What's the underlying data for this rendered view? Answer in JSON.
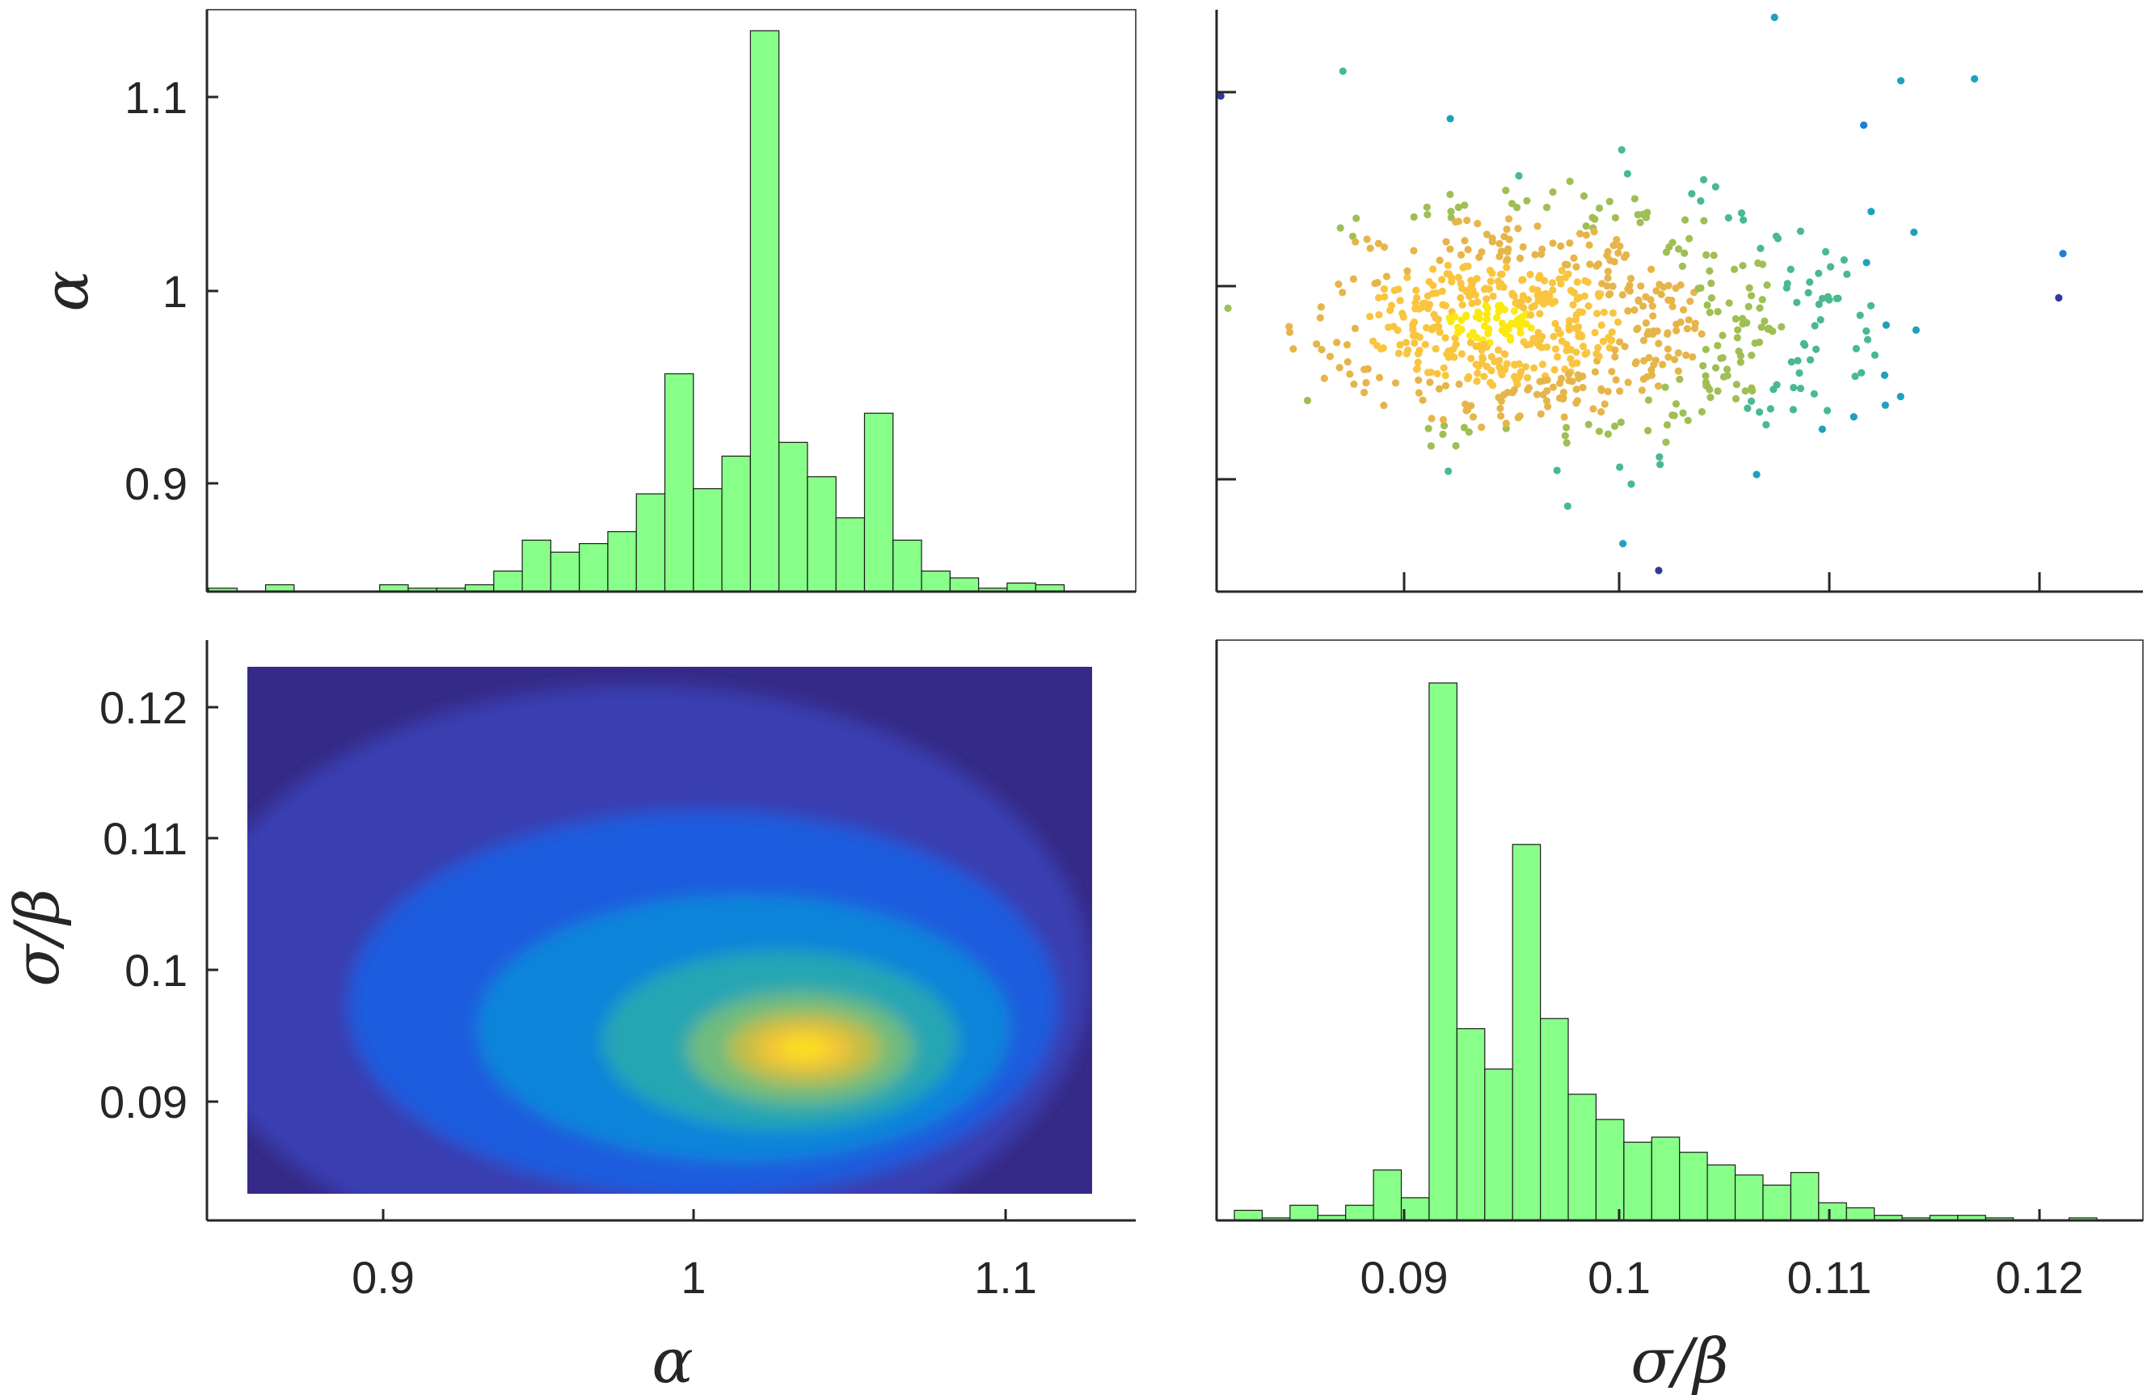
{
  "chart_data": [
    {
      "panel": "alpha-alpha",
      "type": "bar",
      "ylabel": "α",
      "y_ticks": [
        "0.9",
        "1",
        "1.1"
      ],
      "x_bin_edges": [
        0.85,
        1.13
      ],
      "values": [
        0.2,
        0.0,
        0.4,
        0.0,
        0.0,
        0.0,
        0.4,
        0.2,
        0.2,
        0.4,
        1.2,
        3.0,
        2.3,
        2.8,
        3.5,
        5.7,
        12.7,
        6.0,
        7.9,
        32.7,
        8.7,
        6.7,
        4.3,
        10.4,
        3.0,
        1.2,
        0.8,
        0.2,
        0.5,
        0.4,
        0.0,
        0.0
      ],
      "bar_color": "#88ff88"
    },
    {
      "panel": "sigma_beta-alpha",
      "type": "scatter",
      "x_range": [
        0.0825,
        0.1265
      ],
      "y_range": [
        0.847,
        1.15
      ],
      "n_points": 800,
      "center": [
        0.0955,
        0.987
      ],
      "colormap": [
        "#fbe90f",
        "#f9c53f",
        "#e6b54a",
        "#9fbf54",
        "#4ab98f",
        "#1fa0bf",
        "#1f7fd3",
        "#2e3a9e"
      ]
    },
    {
      "panel": "alpha-sigma_beta",
      "type": "heatmap",
      "xlabel": "α",
      "ylabel": "σ/β",
      "x_ticks": [
        "0.9",
        "1",
        "1.1"
      ],
      "y_ticks": [
        "0.09",
        "0.1",
        "0.11",
        "0.12"
      ],
      "x_range": [
        0.862,
        1.134
      ],
      "y_range": [
        0.0833,
        0.1232
      ],
      "peak": [
        1.04,
        0.0943
      ],
      "colormap": [
        "#352a87",
        "#3a3fb3",
        "#1b5ee0",
        "#0a87d9",
        "#2aa8b0",
        "#73bc7a",
        "#c4be43",
        "#f6c537",
        "#f9e21b"
      ]
    },
    {
      "panel": "sigma_beta-sigma_beta",
      "type": "bar",
      "xlabel": "σ/β",
      "x_ticks": [
        "0.09",
        "0.1",
        "0.11",
        "0.12"
      ],
      "x_bin_edges": [
        0.0825,
        0.123
      ],
      "values": [
        0.4,
        0.1,
        0.6,
        0.2,
        0.6,
        2.0,
        0.9,
        21.3,
        7.6,
        6.0,
        14.9,
        8.0,
        5.0,
        4.0,
        3.1,
        3.3,
        2.7,
        2.2,
        1.8,
        1.4,
        1.9,
        0.7,
        0.5,
        0.2,
        0.1,
        0.2,
        0.2,
        0.1,
        0.0,
        0.0,
        0.1
      ],
      "bar_color": "#88ff88"
    }
  ]
}
